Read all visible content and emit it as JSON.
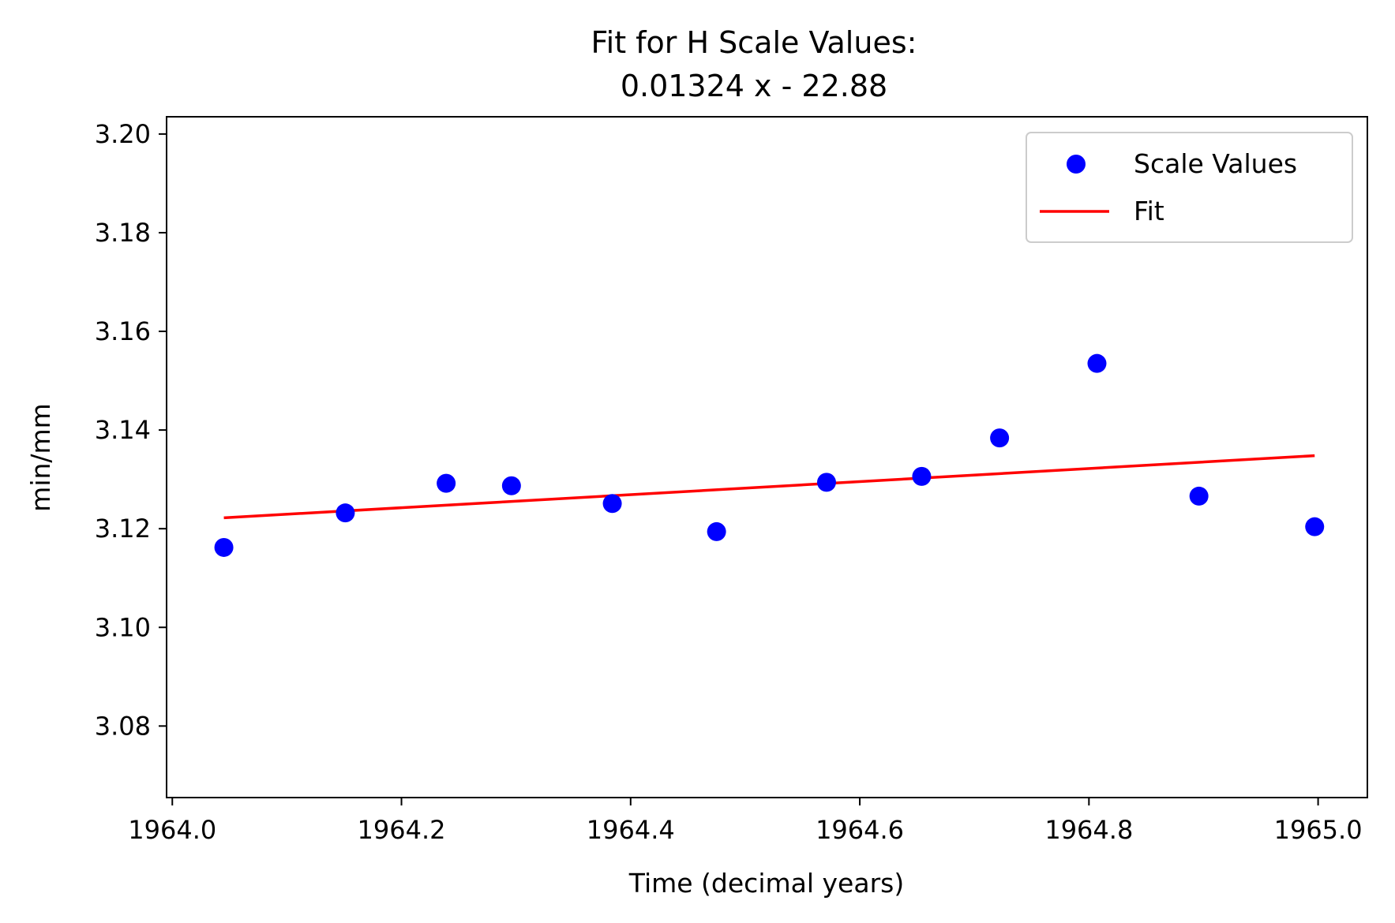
{
  "chart_data": {
    "type": "scatter",
    "title": "Fit for H Scale Values:",
    "subtitle": "0.01324 x - 22.88",
    "xlabel": "Time (decimal years)",
    "ylabel": "min/mm",
    "xlim": [
      1963.995,
      1965.043
    ],
    "ylim": [
      3.0655,
      3.2035
    ],
    "x_ticks": [
      1964.0,
      1964.2,
      1964.4,
      1964.6,
      1964.8,
      1965.0
    ],
    "x_tick_labels": [
      "1964.0",
      "1964.2",
      "1964.4",
      "1964.6",
      "1964.8",
      "1965.0"
    ],
    "y_ticks": [
      3.08,
      3.1,
      3.12,
      3.14,
      3.16,
      3.18,
      3.2
    ],
    "y_tick_labels": [
      "3.08",
      "3.10",
      "3.12",
      "3.14",
      "3.16",
      "3.18",
      "3.20"
    ],
    "grid": false,
    "legend_position": "upper right",
    "series": [
      {
        "name": "Scale Values",
        "kind": "scatter",
        "color": "#0000ff",
        "x": [
          1964.045,
          1964.151,
          1964.239,
          1964.296,
          1964.384,
          1964.475,
          1964.571,
          1964.654,
          1964.722,
          1964.807,
          1964.896,
          1964.997
        ],
        "y": [
          3.1162,
          3.1232,
          3.1292,
          3.1287,
          3.1251,
          3.1194,
          3.1294,
          3.1306,
          3.1384,
          3.1535,
          3.1266,
          3.1204
        ]
      },
      {
        "name": "Fit",
        "kind": "line",
        "color": "#ff0000",
        "x": [
          1964.045,
          1964.997
        ],
        "y": [
          3.1222,
          3.1348
        ]
      }
    ]
  }
}
